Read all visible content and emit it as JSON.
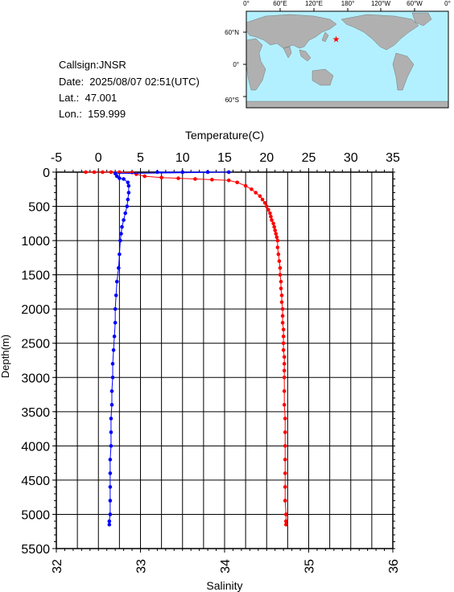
{
  "info": {
    "callsign": "Callsign:JNSR",
    "date": "Date:  2025/08/07 02:51(UTC)",
    "lat": "Lat.:  47.001",
    "lon": "Lon.:  159.999"
  },
  "map": {
    "top_labels": [
      "0°",
      "60°E",
      "120°E",
      "180°",
      "120°W",
      "60°W",
      "0°"
    ],
    "left_labels": [
      "60°N",
      "0°",
      "60°S"
    ],
    "station": {
      "lat": 47.001,
      "lon": 159.999,
      "marker": "star-icon"
    },
    "ocean_color": "#b3f0ff",
    "land_color": "#b0b0b0"
  },
  "chart_data": {
    "type": "scatter",
    "y_axis": {
      "label": "Depth(m)",
      "range": [
        0,
        5500
      ],
      "inverted": true,
      "ticks": [
        "0",
        "500",
        "1000",
        "1500",
        "2000",
        "2500",
        "3000",
        "3500",
        "4000",
        "4500",
        "5000",
        "5500"
      ]
    },
    "x_top": {
      "label": "Temperature(C)",
      "range": [
        -5,
        35
      ],
      "ticks": [
        "-5",
        "0",
        "5",
        "10",
        "15",
        "20",
        "25",
        "30",
        "35"
      ]
    },
    "x_bottom": {
      "label": "Salinity",
      "range": [
        32,
        36
      ],
      "ticks": [
        "32",
        "33",
        "34",
        "35",
        "36"
      ]
    },
    "grid": true,
    "series": [
      {
        "color": "#ff0000",
        "axis": "top",
        "points": [
          [
            -1.5,
            0
          ],
          [
            -0.5,
            0
          ],
          [
            0.5,
            0
          ],
          [
            1.5,
            0
          ],
          [
            2.5,
            0
          ],
          [
            4,
            5
          ],
          [
            4.5,
            30
          ],
          [
            5.5,
            60
          ],
          [
            7.5,
            80
          ],
          [
            9.5,
            90
          ],
          [
            11.5,
            100
          ],
          [
            13.5,
            110
          ],
          [
            15.5,
            120
          ],
          [
            16.5,
            150
          ],
          [
            17.5,
            200
          ],
          [
            18.2,
            250
          ],
          [
            18.7,
            300
          ],
          [
            19.2,
            350
          ],
          [
            19.5,
            400
          ],
          [
            19.8,
            450
          ],
          [
            20,
            500
          ],
          [
            20.2,
            550
          ],
          [
            20.4,
            600
          ],
          [
            20.5,
            650
          ],
          [
            20.6,
            700
          ],
          [
            20.8,
            750
          ],
          [
            20.9,
            800
          ],
          [
            21,
            850
          ],
          [
            21.1,
            900
          ],
          [
            21.2,
            950
          ],
          [
            21.3,
            1000
          ],
          [
            21.3,
            1100
          ],
          [
            21.4,
            1200
          ],
          [
            21.5,
            1300
          ],
          [
            21.6,
            1400
          ],
          [
            21.6,
            1500
          ],
          [
            21.7,
            1600
          ],
          [
            21.7,
            1700
          ],
          [
            21.8,
            1800
          ],
          [
            21.8,
            1900
          ],
          [
            21.9,
            2000
          ],
          [
            21.9,
            2100
          ],
          [
            21.9,
            2200
          ],
          [
            22,
            2300
          ],
          [
            22,
            2400
          ],
          [
            22,
            2500
          ],
          [
            22,
            2600
          ],
          [
            22.1,
            2700
          ],
          [
            22.1,
            2800
          ],
          [
            22.1,
            2900
          ],
          [
            22.1,
            3000
          ],
          [
            22.1,
            3200
          ],
          [
            22.1,
            3400
          ],
          [
            22.2,
            3600
          ],
          [
            22.2,
            3800
          ],
          [
            22.2,
            4000
          ],
          [
            22.2,
            4200
          ],
          [
            22.2,
            4400
          ],
          [
            22.2,
            4600
          ],
          [
            22.2,
            4800
          ],
          [
            22.3,
            5000
          ],
          [
            22.3,
            5100
          ],
          [
            22.3,
            5150
          ]
        ]
      },
      {
        "color": "#0000ff",
        "axis": "bottom",
        "points": [
          [
            33.2,
            0
          ],
          [
            33.5,
            0
          ],
          [
            33.8,
            0
          ],
          [
            34.05,
            0
          ],
          [
            32.7,
            20
          ],
          [
            32.72,
            60
          ],
          [
            32.75,
            90
          ],
          [
            32.8,
            100
          ],
          [
            32.85,
            150
          ],
          [
            32.86,
            200
          ],
          [
            32.86,
            300
          ],
          [
            32.85,
            400
          ],
          [
            32.84,
            500
          ],
          [
            32.82,
            600
          ],
          [
            32.8,
            700
          ],
          [
            32.78,
            800
          ],
          [
            32.77,
            900
          ],
          [
            32.76,
            1000
          ],
          [
            32.75,
            1200
          ],
          [
            32.74,
            1400
          ],
          [
            32.72,
            1600
          ],
          [
            32.71,
            1800
          ],
          [
            32.7,
            2000
          ],
          [
            32.7,
            2200
          ],
          [
            32.69,
            2400
          ],
          [
            32.68,
            2600
          ],
          [
            32.67,
            2800
          ],
          [
            32.67,
            3000
          ],
          [
            32.66,
            3200
          ],
          [
            32.66,
            3400
          ],
          [
            32.65,
            3600
          ],
          [
            32.65,
            3800
          ],
          [
            32.65,
            4000
          ],
          [
            32.64,
            4200
          ],
          [
            32.64,
            4400
          ],
          [
            32.64,
            4600
          ],
          [
            32.64,
            4800
          ],
          [
            32.64,
            5000
          ],
          [
            32.63,
            5100
          ],
          [
            32.63,
            5150
          ]
        ]
      }
    ]
  }
}
